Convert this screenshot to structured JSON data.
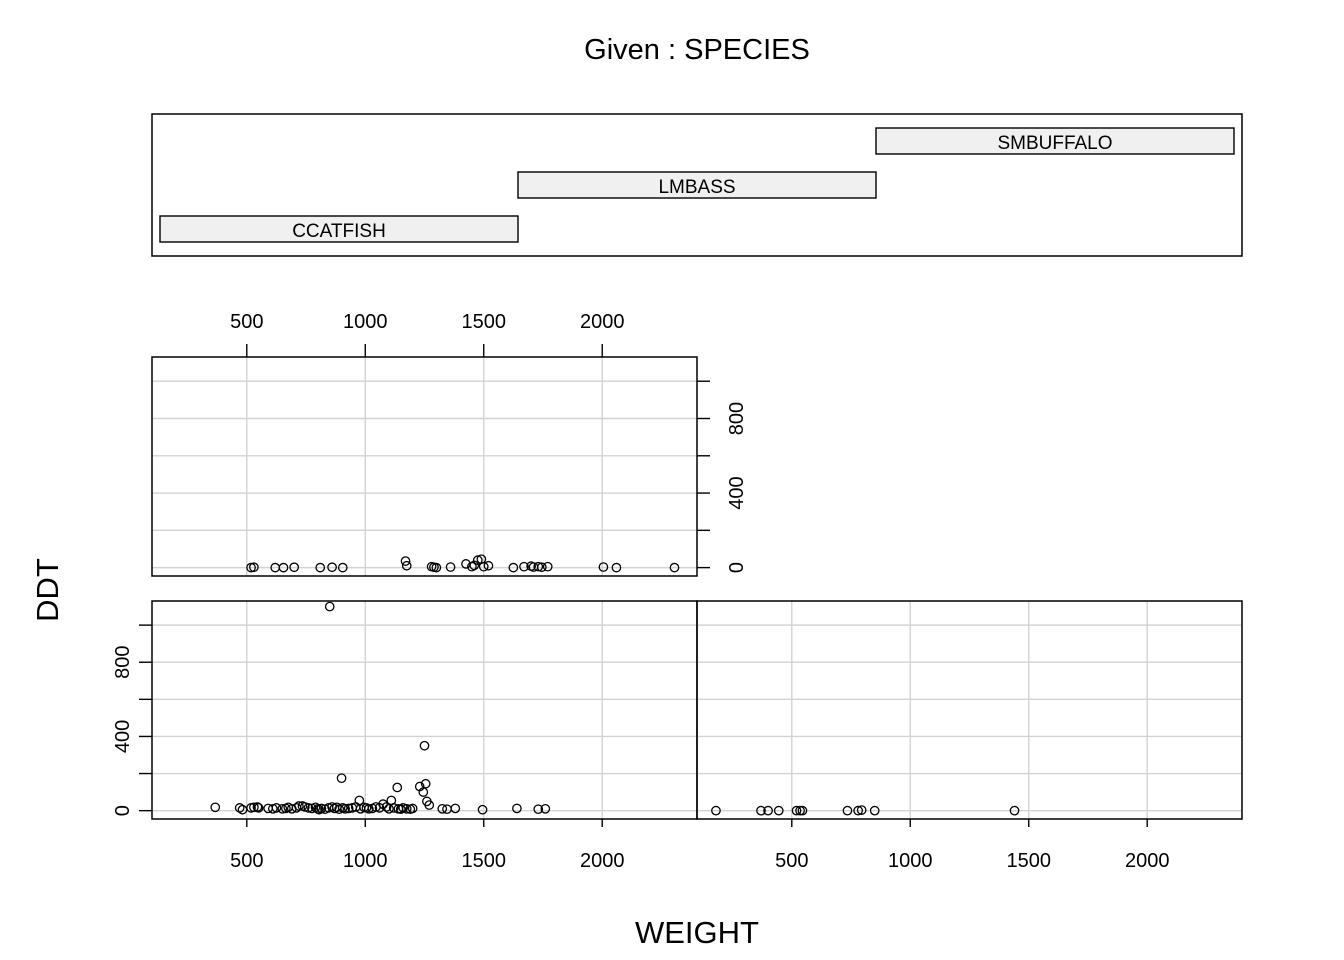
{
  "chart_data": {
    "type": "scatter",
    "kind": "coplot",
    "title": "Given : SPECIES",
    "xlabel": "WEIGHT",
    "ylabel": "DDT",
    "xlim": [
      100,
      2400
    ],
    "ylim": [
      -45,
      1130
    ],
    "x_ticks": [
      500,
      1000,
      1500,
      2000
    ],
    "y_ticks": [
      0,
      400,
      800
    ],
    "y_minor_ticks": [
      200,
      600,
      1000
    ],
    "grid": true,
    "given": {
      "levels": [
        "CCATFISH",
        "LMBASS",
        "SMBUFFALO"
      ]
    },
    "panels": [
      {
        "level": "CCATFISH",
        "points": [
          [
            367,
            18
          ],
          [
            470,
            15
          ],
          [
            482,
            5
          ],
          [
            518,
            15
          ],
          [
            530,
            18
          ],
          [
            545,
            20
          ],
          [
            550,
            15
          ],
          [
            590,
            12
          ],
          [
            610,
            10
          ],
          [
            625,
            15
          ],
          [
            650,
            10
          ],
          [
            665,
            12
          ],
          [
            675,
            18
          ],
          [
            690,
            10
          ],
          [
            710,
            15
          ],
          [
            720,
            25
          ],
          [
            735,
            25
          ],
          [
            745,
            20
          ],
          [
            760,
            15
          ],
          [
            775,
            12
          ],
          [
            790,
            18
          ],
          [
            800,
            10
          ],
          [
            805,
            5
          ],
          [
            815,
            12
          ],
          [
            830,
            8
          ],
          [
            845,
            15
          ],
          [
            850,
            1100
          ],
          [
            860,
            20
          ],
          [
            870,
            12
          ],
          [
            880,
            18
          ],
          [
            890,
            8
          ],
          [
            900,
            175
          ],
          [
            905,
            15
          ],
          [
            915,
            10
          ],
          [
            930,
            12
          ],
          [
            945,
            15
          ],
          [
            960,
            20
          ],
          [
            975,
            55
          ],
          [
            980,
            10
          ],
          [
            995,
            18
          ],
          [
            1005,
            15
          ],
          [
            1015,
            10
          ],
          [
            1030,
            12
          ],
          [
            1045,
            20
          ],
          [
            1060,
            15
          ],
          [
            1075,
            35
          ],
          [
            1090,
            20
          ],
          [
            1100,
            10
          ],
          [
            1110,
            55
          ],
          [
            1120,
            15
          ],
          [
            1135,
            125
          ],
          [
            1140,
            10
          ],
          [
            1150,
            8
          ],
          [
            1160,
            15
          ],
          [
            1175,
            10
          ],
          [
            1190,
            8
          ],
          [
            1200,
            12
          ],
          [
            1230,
            130
          ],
          [
            1245,
            100
          ],
          [
            1250,
            350
          ],
          [
            1255,
            145
          ],
          [
            1260,
            50
          ],
          [
            1270,
            30
          ],
          [
            1325,
            10
          ],
          [
            1345,
            8
          ],
          [
            1380,
            12
          ],
          [
            1495,
            5
          ],
          [
            1640,
            12
          ],
          [
            1730,
            8
          ],
          [
            1760,
            10
          ]
        ]
      },
      {
        "level": "LMBASS",
        "points": [
          [
            518,
            0
          ],
          [
            530,
            2
          ],
          [
            620,
            0
          ],
          [
            655,
            0
          ],
          [
            700,
            2
          ],
          [
            810,
            0
          ],
          [
            860,
            2
          ],
          [
            905,
            0
          ],
          [
            1170,
            35
          ],
          [
            1175,
            10
          ],
          [
            1280,
            5
          ],
          [
            1290,
            2
          ],
          [
            1300,
            0
          ],
          [
            1360,
            3
          ],
          [
            1425,
            20
          ],
          [
            1450,
            5
          ],
          [
            1460,
            12
          ],
          [
            1475,
            40
          ],
          [
            1490,
            45
          ],
          [
            1500,
            5
          ],
          [
            1520,
            10
          ],
          [
            1625,
            0
          ],
          [
            1670,
            5
          ],
          [
            1700,
            8
          ],
          [
            1710,
            3
          ],
          [
            1730,
            5
          ],
          [
            1745,
            2
          ],
          [
            1770,
            5
          ],
          [
            2005,
            3
          ],
          [
            2060,
            0
          ],
          [
            2305,
            0
          ]
        ]
      },
      {
        "level": "SMBUFFALO",
        "points": [
          [
            180,
            0
          ],
          [
            370,
            0
          ],
          [
            400,
            0
          ],
          [
            445,
            0
          ],
          [
            520,
            0
          ],
          [
            535,
            0
          ],
          [
            545,
            0
          ],
          [
            735,
            0
          ],
          [
            780,
            0
          ],
          [
            795,
            3
          ],
          [
            850,
            0
          ],
          [
            1440,
            0
          ]
        ]
      }
    ]
  }
}
